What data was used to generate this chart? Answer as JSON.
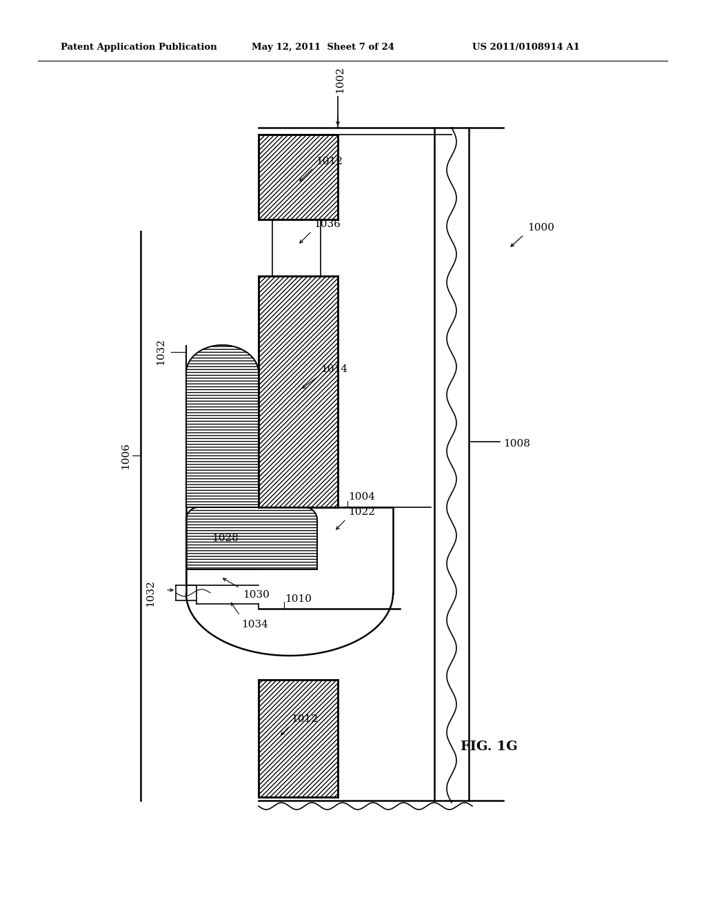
{
  "header_left": "Patent Application Publication",
  "header_center": "May 12, 2011  Sheet 7 of 24",
  "header_right": "US 2011/0108914 A1",
  "fig_caption": "FIG. 1G",
  "bg_color": "#ffffff"
}
